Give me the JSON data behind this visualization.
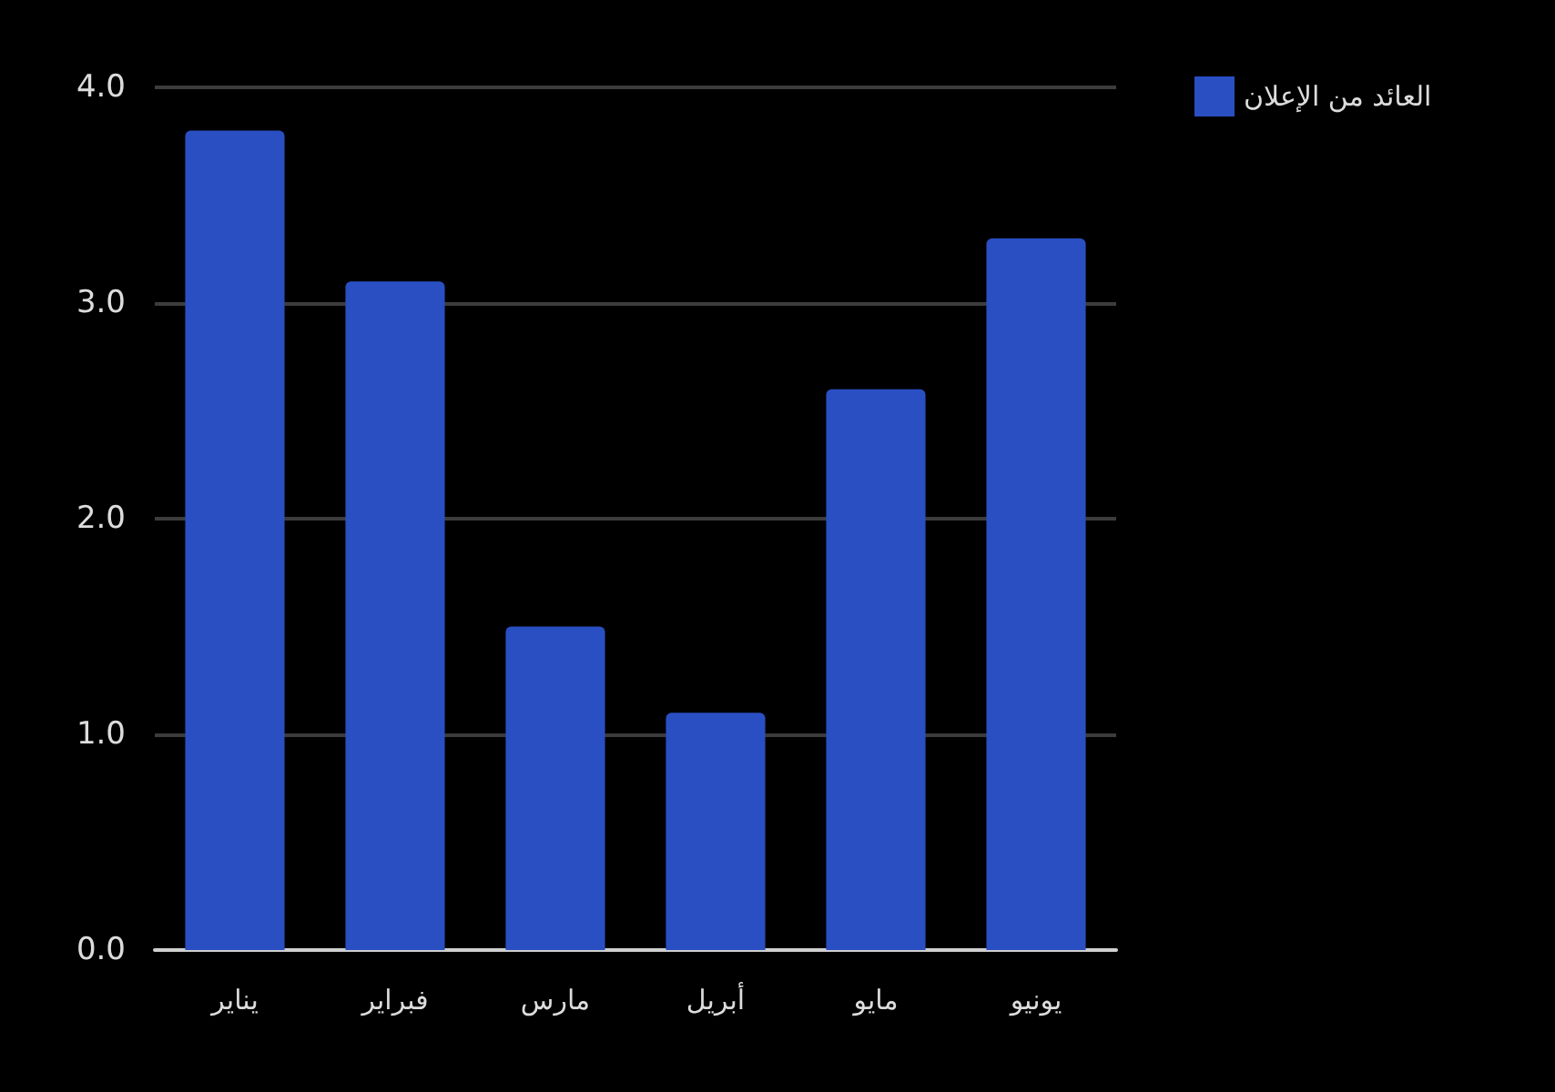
{
  "chart_data": {
    "type": "bar",
    "categories": [
      "يناير",
      "فبراير",
      "مارس",
      "أبريل",
      "مايو",
      "يونيو"
    ],
    "series": [
      {
        "name": "العائد من الإعلان",
        "color": "#2a4fc2",
        "values": [
          3.8,
          3.1,
          1.5,
          1.1,
          2.6,
          3.3
        ]
      }
    ],
    "ylim": [
      0,
      4
    ],
    "yticks": [
      {
        "value": 0,
        "label": "0.0"
      },
      {
        "value": 1,
        "label": "1.0"
      },
      {
        "value": 2,
        "label": "2.0"
      },
      {
        "value": 3,
        "label": "3.0"
      },
      {
        "value": 4,
        "label": "4.0"
      }
    ],
    "grid": "y",
    "legend": "top right"
  }
}
